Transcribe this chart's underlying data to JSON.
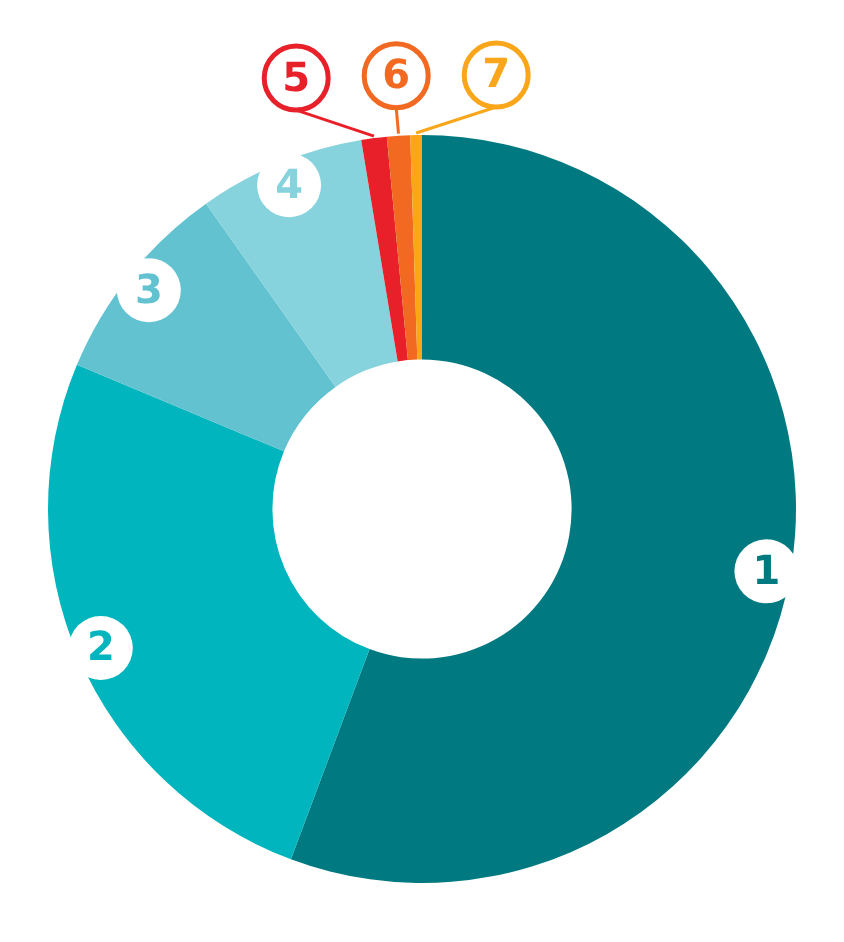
{
  "chart_data": {
    "type": "donut",
    "categories": [
      "1",
      "2",
      "3",
      "4",
      "5",
      "6",
      "7"
    ],
    "values": [
      55.7,
      25.6,
      8.9,
      7.2,
      1.1,
      1.0,
      0.5
    ],
    "colors": [
      "#007a80",
      "#00b5bd",
      "#62c2d0",
      "#86d3dd",
      "#e8202a",
      "#f26a22",
      "#f9a61a"
    ],
    "legend": false
  }
}
